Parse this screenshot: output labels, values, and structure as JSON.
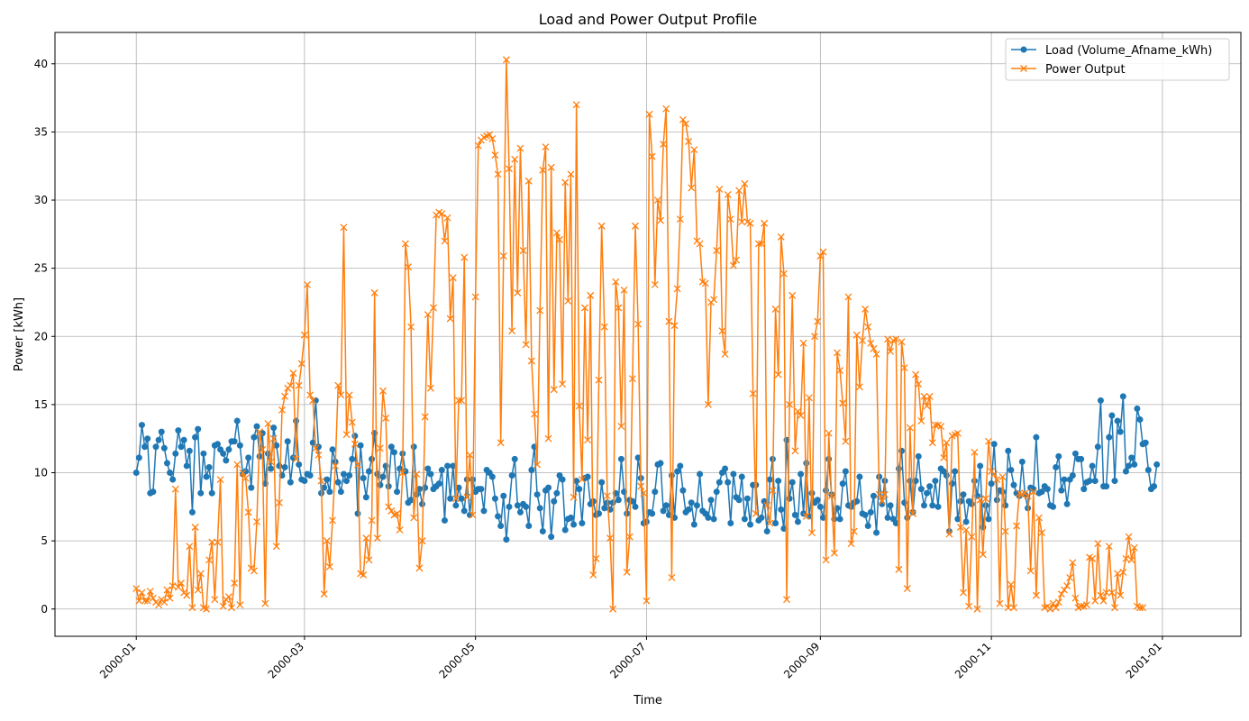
{
  "chart_data": {
    "type": "line",
    "title": "Load and Power Output Profile",
    "xlabel": "Time",
    "ylabel": "Power [kWh]",
    "xlim": [
      "1999-12-03",
      "2001-01-29"
    ],
    "ylim": [
      -2,
      42.3
    ],
    "x_ticks": [
      "2000-01",
      "2000-03",
      "2000-05",
      "2000-07",
      "2000-09",
      "2000-11",
      "2001-01"
    ],
    "y_ticks": [
      0,
      5,
      10,
      15,
      20,
      25,
      30,
      35,
      40
    ],
    "grid": true,
    "legend_position": "top-right",
    "x_start": "2000-01-01",
    "x_end": "2000-12-31",
    "x_step_days": 1,
    "series": [
      {
        "name": "Load (Volume_Afname_kWh)",
        "color": "#1f77b4",
        "marker": "circle",
        "values": [
          10.0,
          11.1,
          13.5,
          11.9,
          12.5,
          8.5,
          8.6,
          11.9,
          12.4,
          13.0,
          11.8,
          10.7,
          10.0,
          9.5,
          11.4,
          13.1,
          11.9,
          12.4,
          10.5,
          11.6,
          7.1,
          12.6,
          13.2,
          8.5,
          11.4,
          9.7,
          10.4,
          8.5,
          12.0,
          12.1,
          11.7,
          11.4,
          10.9,
          11.7,
          12.3,
          12.3,
          13.8,
          12.0,
          9.9,
          10.1,
          11.1,
          8.9,
          12.6,
          13.4,
          11.2,
          12.9,
          9.2,
          11.4,
          10.3,
          13.3,
          12.0,
          10.5,
          9.8,
          10.4,
          12.3,
          9.3,
          11.1,
          13.8,
          10.6,
          9.5,
          9.4,
          9.9,
          9.8,
          12.2,
          15.3,
          11.9,
          8.5,
          8.9,
          9.5,
          8.6,
          11.7,
          10.8,
          9.3,
          8.6,
          9.9,
          9.4,
          9.8,
          11.0,
          12.7,
          7.0,
          12.0,
          9.6,
          8.2,
          10.1,
          11.0,
          12.9,
          9.9,
          9.1,
          9.7,
          10.5,
          9.0,
          11.9,
          11.5,
          8.6,
          10.3,
          11.4,
          10.1,
          7.8,
          8.0,
          11.9,
          8.4,
          8.8,
          7.7,
          8.9,
          10.3,
          9.9,
          8.8,
          9.0,
          9.2,
          10.2,
          6.5,
          10.5,
          8.1,
          10.5,
          7.6,
          8.9,
          8.1,
          7.2,
          9.5,
          6.9,
          9.5,
          8.6,
          8.8,
          8.8,
          7.2,
          10.2,
          10.0,
          9.7,
          8.1,
          6.8,
          6.1,
          8.3,
          5.1,
          7.5,
          9.8,
          11.0,
          7.6,
          7.1,
          7.7,
          7.5,
          6.1,
          10.2,
          11.9,
          8.4,
          7.4,
          5.7,
          8.7,
          8.9,
          5.3,
          7.9,
          8.5,
          9.8,
          9.5,
          5.8,
          6.6,
          6.7,
          6.2,
          9.4,
          8.8,
          6.3,
          9.6,
          9.7,
          7.7,
          7.9,
          6.9,
          7.0,
          9.3,
          7.4,
          7.8,
          7.3,
          7.8,
          8.5,
          8.0,
          11.0,
          8.6,
          7.0,
          8.0,
          7.9,
          7.5,
          11.1,
          9.6,
          6.3,
          6.4,
          7.1,
          7.0,
          8.6,
          10.6,
          10.7,
          7.2,
          7.6,
          6.9,
          9.8,
          6.7,
          10.1,
          10.5,
          8.7,
          7.1,
          7.3,
          7.8,
          6.2,
          7.6,
          9.9,
          7.2,
          7.0,
          6.7,
          8.0,
          6.6,
          8.6,
          9.3,
          10.0,
          10.3,
          9.3,
          6.3,
          9.9,
          8.2,
          8.0,
          9.7,
          6.6,
          8.1,
          6.2,
          9.1,
          9.1,
          6.5,
          6.7,
          7.9,
          5.7,
          9.5,
          11.0,
          6.3,
          9.4,
          7.3,
          5.9,
          12.4,
          8.1,
          9.3,
          6.9,
          6.4,
          9.9,
          7.0,
          10.7,
          6.8,
          8.5,
          7.8,
          8.0,
          7.5,
          6.7,
          8.7,
          11.0,
          8.4,
          6.6,
          7.4,
          6.6,
          9.2,
          10.1,
          7.6,
          7.5,
          7.8,
          7.9,
          9.7,
          7.0,
          6.9,
          6.1,
          7.1,
          8.3,
          5.6,
          9.7,
          7.7,
          9.4,
          6.7,
          7.6,
          6.6,
          6.3,
          10.3,
          11.6,
          7.8,
          6.7,
          9.4,
          7.1,
          9.4,
          11.2,
          8.8,
          7.6,
          8.5,
          9.0,
          7.6,
          9.4,
          7.5,
          10.3,
          10.1,
          9.8,
          5.7,
          9.2,
          10.1,
          6.6,
          7.9,
          8.4,
          6.4,
          7.9,
          7.7,
          9.4,
          8.3,
          10.5,
          6.0,
          7.6,
          6.6,
          9.2,
          12.1,
          8.0,
          8.7,
          8.6,
          7.6,
          11.6,
          10.2,
          9.1,
          8.5,
          8.3,
          10.8,
          8.4,
          7.4,
          8.9,
          8.8,
          12.6,
          8.5,
          8.6,
          9.0,
          8.8,
          7.6,
          7.5,
          10.4,
          11.2,
          8.7,
          9.5,
          7.7,
          9.5,
          9.8,
          11.4,
          11.0,
          11.0,
          8.8,
          9.3,
          9.4,
          10.5,
          9.4,
          11.9,
          15.3,
          9.0,
          9.0,
          12.6,
          14.2,
          9.4,
          13.8,
          13.0,
          15.6,
          10.1,
          10.5,
          11.1,
          10.6,
          14.7,
          13.9,
          12.1,
          12.2,
          10.2,
          8.8,
          9.0,
          10.6
        ]
      },
      {
        "name": "Power Output",
        "color": "#ff7f0e",
        "marker": "x",
        "values": [
          1.5,
          0.6,
          1.2,
          0.6,
          0.6,
          1.3,
          0.8,
          0.5,
          0.3,
          0.7,
          0.5,
          1.4,
          0.8,
          1.7,
          8.8,
          1.6,
          1.9,
          1.2,
          1.0,
          4.6,
          0.1,
          6.0,
          1.4,
          2.6,
          0.1,
          0.0,
          3.6,
          4.9,
          0.7,
          4.9,
          9.5,
          0.2,
          0.7,
          0.9,
          0.1,
          1.9,
          10.6,
          0.3,
          10.0,
          9.6,
          7.1,
          3.0,
          2.8,
          6.4,
          13.0,
          11.7,
          0.4,
          13.6,
          10.8,
          12.5,
          4.6,
          7.8,
          14.6,
          15.6,
          16.2,
          16.4,
          17.3,
          11.0,
          16.4,
          18.0,
          20.1,
          23.8,
          15.7,
          15.3,
          11.8,
          11.3,
          9.4,
          1.1,
          5.0,
          3.1,
          6.5,
          10.5,
          16.4,
          15.7,
          28.0,
          12.8,
          15.7,
          13.7,
          12.1,
          10.6,
          2.6,
          2.5,
          5.2,
          3.6,
          6.5,
          23.2,
          5.2,
          11.8,
          16.0,
          14.0,
          7.5,
          7.2,
          6.9,
          7.0,
          5.8,
          10.0,
          26.8,
          25.1,
          20.7,
          6.7,
          9.9,
          3.0,
          5.0,
          14.1,
          21.6,
          16.2,
          22.1,
          28.9,
          29.1,
          29.0,
          27.0,
          28.7,
          21.3,
          24.3,
          8.1,
          15.3,
          15.3,
          25.8,
          8.2,
          11.3,
          6.9,
          22.9,
          34.0,
          34.4,
          34.6,
          34.7,
          34.8,
          34.5,
          33.3,
          31.9,
          12.2,
          25.9,
          40.3,
          32.3,
          20.4,
          33.0,
          23.2,
          33.8,
          26.3,
          19.4,
          31.4,
          18.2,
          14.3,
          10.6,
          21.9,
          32.2,
          33.9,
          12.5,
          32.4,
          16.1,
          27.6,
          27.1,
          16.5,
          31.3,
          22.6,
          31.9,
          8.2,
          37.0,
          14.9,
          9.5,
          22.1,
          12.4,
          23.0,
          2.5,
          3.7,
          16.8,
          28.1,
          20.7,
          8.3,
          5.2,
          0.0,
          24.0,
          22.1,
          13.4,
          23.4,
          2.7,
          5.3,
          16.9,
          28.1,
          20.9,
          9.0,
          8.5,
          0.6,
          36.3,
          33.2,
          23.8,
          30.0,
          28.5,
          34.1,
          36.7,
          21.1,
          2.3,
          20.8,
          23.5,
          28.6,
          35.9,
          35.6,
          34.3,
          30.9,
          33.7,
          27.0,
          26.8,
          24.0,
          23.9,
          15.0,
          22.5,
          22.7,
          26.3,
          30.8,
          20.4,
          18.7,
          30.4,
          28.6,
          25.2,
          25.6,
          30.7,
          28.4,
          31.2,
          28.4,
          28.3,
          15.8,
          7.0,
          26.8,
          26.8,
          28.3,
          7.6,
          6.3,
          8.7,
          22.0,
          17.2,
          27.3,
          24.6,
          0.7,
          15.0,
          23.0,
          11.6,
          14.5,
          14.2,
          19.5,
          6.8,
          15.5,
          5.6,
          20.0,
          21.1,
          25.9,
          26.2,
          3.6,
          12.9,
          8.3,
          4.1,
          18.8,
          17.5,
          15.1,
          12.3,
          22.9,
          4.8,
          5.7,
          20.1,
          16.3,
          19.7,
          22.0,
          20.7,
          19.5,
          19.1,
          18.7,
          8.4,
          7.9,
          8.4,
          19.8,
          18.9,
          19.7,
          19.8,
          2.9,
          19.6,
          17.7,
          1.5,
          13.3,
          7.0,
          17.2,
          16.5,
          13.8,
          15.6,
          14.9,
          15.6,
          12.2,
          13.5,
          13.5,
          13.4,
          11.1,
          12.2,
          5.5,
          12.7,
          12.8,
          12.9,
          6.0,
          1.2,
          5.8,
          0.2,
          5.3,
          11.5,
          0.0,
          8.0,
          4.0,
          8.1,
          12.3,
          10.1,
          9.9,
          9.5,
          0.4,
          9.7,
          5.7,
          0.1,
          1.8,
          0.1,
          6.1,
          8.5,
          8.4,
          8.5,
          8.3,
          2.8,
          8.6,
          1.0,
          6.7,
          5.6,
          0.1,
          0.2,
          0.0,
          0.4,
          0.1,
          0.5,
          1.1,
          1.4,
          1.7,
          2.3,
          3.4,
          0.8,
          0.1,
          0.2,
          0.2,
          0.3,
          3.8,
          3.7,
          0.6,
          4.8,
          1.0,
          0.6,
          1.2,
          4.6,
          1.2,
          0.1,
          2.6,
          1.0,
          2.7,
          3.7,
          5.3,
          3.6,
          4.5,
          0.2,
          0.1,
          0.1
        ]
      }
    ]
  }
}
